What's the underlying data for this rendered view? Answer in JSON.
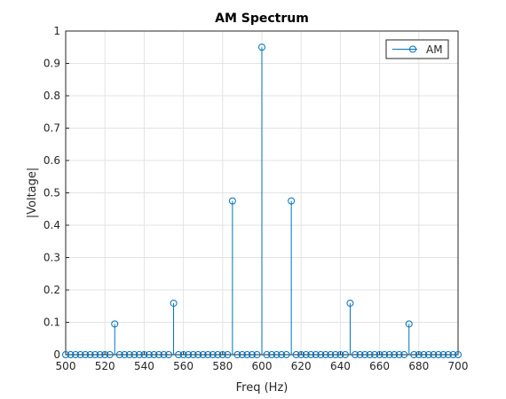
{
  "chart_data": {
    "type": "stem",
    "title": "AM Spectrum",
    "xlabel": "Freq (Hz)",
    "ylabel": "|Voltage|",
    "xlim": [
      500,
      700
    ],
    "ylim": [
      0,
      1
    ],
    "grid": true,
    "legend_position": "top-right",
    "x_ticks": [
      500,
      520,
      540,
      560,
      580,
      600,
      620,
      640,
      660,
      680,
      700
    ],
    "y_ticks": [
      0,
      0.1,
      0.2,
      0.3,
      0.4,
      0.5,
      0.6,
      0.7,
      0.8,
      0.9,
      1
    ],
    "x_tick_labels": [
      "500",
      "520",
      "540",
      "560",
      "580",
      "600",
      "620",
      "640",
      "660",
      "680",
      "700"
    ],
    "y_tick_labels": [
      "0",
      "0.1",
      "0.2",
      "0.3",
      "0.4",
      "0.5",
      "0.6",
      "0.7",
      "0.8",
      "0.9",
      "1"
    ],
    "series": [
      {
        "name": "AM",
        "color": "#0072BD",
        "points": [
          [
            500,
            0
          ],
          [
            502.5,
            0
          ],
          [
            505,
            0
          ],
          [
            507.5,
            0
          ],
          [
            510,
            0
          ],
          [
            512.5,
            0
          ],
          [
            515,
            0
          ],
          [
            517.5,
            0
          ],
          [
            520,
            0
          ],
          [
            522.5,
            0
          ],
          [
            525,
            0.095
          ],
          [
            527.5,
            0
          ],
          [
            530,
            0
          ],
          [
            532.5,
            0
          ],
          [
            535,
            0
          ],
          [
            537.5,
            0
          ],
          [
            540,
            0
          ],
          [
            542.5,
            0
          ],
          [
            545,
            0
          ],
          [
            547.5,
            0
          ],
          [
            550,
            0
          ],
          [
            552.5,
            0
          ],
          [
            555,
            0.159
          ],
          [
            557.5,
            0
          ],
          [
            560,
            0
          ],
          [
            562.5,
            0
          ],
          [
            565,
            0
          ],
          [
            567.5,
            0
          ],
          [
            570,
            0
          ],
          [
            572.5,
            0
          ],
          [
            575,
            0
          ],
          [
            577.5,
            0
          ],
          [
            580,
            0
          ],
          [
            582.5,
            0
          ],
          [
            585,
            0.475
          ],
          [
            587.5,
            0
          ],
          [
            590,
            0
          ],
          [
            592.5,
            0
          ],
          [
            595,
            0
          ],
          [
            597.5,
            0
          ],
          [
            600,
            0.95
          ],
          [
            602.5,
            0
          ],
          [
            605,
            0
          ],
          [
            607.5,
            0
          ],
          [
            610,
            0
          ],
          [
            612.5,
            0
          ],
          [
            615,
            0.475
          ],
          [
            617.5,
            0
          ],
          [
            620,
            0
          ],
          [
            622.5,
            0
          ],
          [
            625,
            0
          ],
          [
            627.5,
            0
          ],
          [
            630,
            0
          ],
          [
            632.5,
            0
          ],
          [
            635,
            0
          ],
          [
            637.5,
            0
          ],
          [
            640,
            0
          ],
          [
            642.5,
            0
          ],
          [
            645,
            0.159
          ],
          [
            647.5,
            0
          ],
          [
            650,
            0
          ],
          [
            652.5,
            0
          ],
          [
            655,
            0
          ],
          [
            657.5,
            0
          ],
          [
            660,
            0
          ],
          [
            662.5,
            0
          ],
          [
            665,
            0
          ],
          [
            667.5,
            0
          ],
          [
            670,
            0
          ],
          [
            672.5,
            0
          ],
          [
            675,
            0.095
          ],
          [
            677.5,
            0
          ],
          [
            680,
            0
          ],
          [
            682.5,
            0
          ],
          [
            685,
            0
          ],
          [
            687.5,
            0
          ],
          [
            690,
            0
          ],
          [
            692.5,
            0
          ],
          [
            695,
            0
          ],
          [
            697.5,
            0
          ],
          [
            700,
            0
          ]
        ]
      }
    ]
  }
}
